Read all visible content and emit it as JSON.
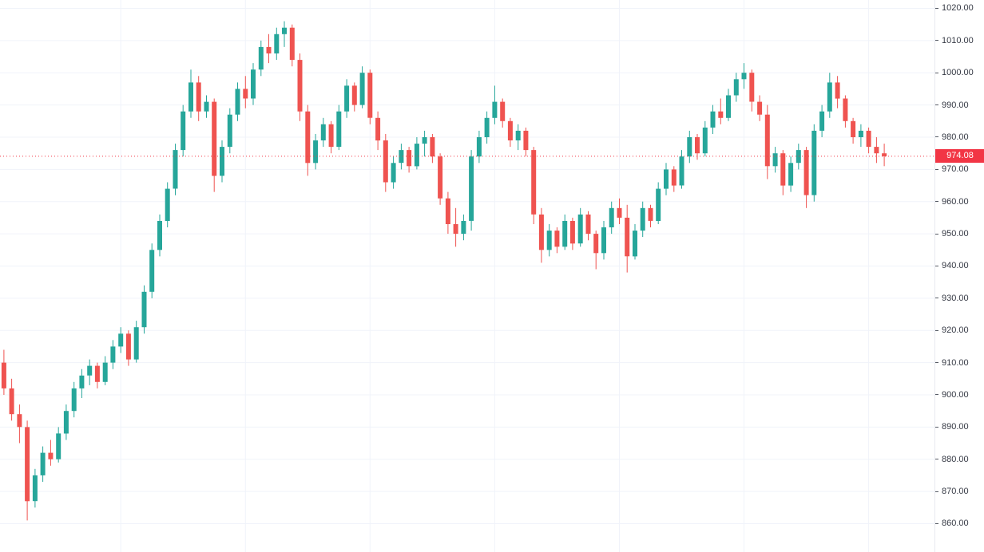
{
  "chart_data": {
    "type": "candlestick",
    "title": "",
    "xlabel": "",
    "ylabel": "",
    "ylim": [
      851.2,
      1022.6
    ],
    "grid": true,
    "legend": "none",
    "y_ticks": [
      "1020.00",
      "1010.00",
      "1000.00",
      "990.00",
      "980.00",
      "970.00",
      "960.00",
      "950.00",
      "940.00",
      "930.00",
      "920.00",
      "910.00",
      "900.00",
      "890.00",
      "880.00",
      "870.00",
      "860.00"
    ],
    "last_price": 974.08,
    "last_price_label": "974.08",
    "colors": {
      "up": "#26a69a",
      "down": "#ef5350",
      "grid": "#f0f3fa",
      "axis_text": "#363a45",
      "last_price_bg": "#f23645"
    },
    "candles": [
      [
        910,
        914,
        900,
        902
      ],
      [
        902,
        905,
        892,
        894
      ],
      [
        894,
        897,
        885,
        890
      ],
      [
        890,
        892,
        861,
        867
      ],
      [
        867,
        877,
        865,
        875
      ],
      [
        875,
        884,
        873,
        882
      ],
      [
        882,
        886,
        878,
        880
      ],
      [
        880,
        890,
        879,
        888
      ],
      [
        888,
        897,
        886,
        895
      ],
      [
        895,
        904,
        893,
        902
      ],
      [
        902,
        908,
        899,
        906
      ],
      [
        906,
        911,
        903,
        909
      ],
      [
        909,
        910,
        902,
        904
      ],
      [
        904,
        912,
        903,
        910
      ],
      [
        910,
        917,
        908,
        915
      ],
      [
        915,
        921,
        913,
        919
      ],
      [
        919,
        920,
        909,
        911
      ],
      [
        911,
        923,
        910,
        921
      ],
      [
        921,
        934,
        919,
        932
      ],
      [
        932,
        947,
        930,
        945
      ],
      [
        945,
        956,
        943,
        954
      ],
      [
        954,
        966,
        952,
        964
      ],
      [
        964,
        978,
        962,
        976
      ],
      [
        976,
        990,
        974,
        988
      ],
      [
        988,
        1001,
        986,
        997
      ],
      [
        997,
        999,
        985,
        988
      ],
      [
        988,
        993,
        986,
        991
      ],
      [
        991,
        992,
        963,
        968
      ],
      [
        968,
        979,
        966,
        977
      ],
      [
        977,
        989,
        975,
        987
      ],
      [
        987,
        997,
        985,
        995
      ],
      [
        995,
        999,
        989,
        992
      ],
      [
        992,
        1003,
        990,
        1001
      ],
      [
        1001,
        1010,
        999,
        1008
      ],
      [
        1008,
        1012,
        1003,
        1006
      ],
      [
        1006,
        1014,
        1004,
        1012
      ],
      [
        1012,
        1016,
        1008,
        1014
      ],
      [
        1014,
        1015,
        1002,
        1004
      ],
      [
        1004,
        1006,
        985,
        988
      ],
      [
        988,
        990,
        968,
        972
      ],
      [
        972,
        981,
        970,
        979
      ],
      [
        979,
        986,
        977,
        984
      ],
      [
        984,
        985,
        975,
        977
      ],
      [
        977,
        990,
        976,
        988
      ],
      [
        988,
        998,
        986,
        996
      ],
      [
        996,
        997,
        988,
        990
      ],
      [
        990,
        1002,
        989,
        1000
      ],
      [
        1000,
        1001,
        984,
        986
      ],
      [
        986,
        988,
        976,
        979
      ],
      [
        979,
        981,
        963,
        966
      ],
      [
        966,
        974,
        964,
        972
      ],
      [
        972,
        978,
        970,
        976
      ],
      [
        976,
        977,
        969,
        971
      ],
      [
        971,
        980,
        970,
        978
      ],
      [
        978,
        982,
        974,
        980
      ],
      [
        980,
        981,
        972,
        974
      ],
      [
        974,
        975,
        959,
        961
      ],
      [
        961,
        963,
        950,
        953
      ],
      [
        953,
        958,
        946,
        950
      ],
      [
        950,
        956,
        948,
        954
      ],
      [
        954,
        976,
        951,
        974
      ],
      [
        974,
        982,
        972,
        980
      ],
      [
        980,
        988,
        978,
        986
      ],
      [
        986,
        996,
        984,
        991
      ],
      [
        991,
        992,
        983,
        985
      ],
      [
        985,
        986,
        977,
        979
      ],
      [
        979,
        984,
        976,
        982
      ],
      [
        982,
        983,
        974,
        976
      ],
      [
        976,
        977,
        953,
        956
      ],
      [
        956,
        958,
        941,
        945
      ],
      [
        945,
        953,
        943,
        951
      ],
      [
        951,
        952,
        944,
        946
      ],
      [
        946,
        956,
        945,
        954
      ],
      [
        954,
        955,
        945,
        947
      ],
      [
        947,
        958,
        946,
        956
      ],
      [
        956,
        957,
        948,
        950
      ],
      [
        950,
        951,
        939,
        944
      ],
      [
        944,
        954,
        942,
        952
      ],
      [
        952,
        960,
        950,
        958
      ],
      [
        958,
        961,
        953,
        955
      ],
      [
        955,
        959,
        938,
        943
      ],
      [
        943,
        953,
        942,
        951
      ],
      [
        951,
        960,
        949,
        958
      ],
      [
        958,
        959,
        952,
        954
      ],
      [
        954,
        966,
        953,
        964
      ],
      [
        964,
        972,
        962,
        970
      ],
      [
        970,
        971,
        963,
        965
      ],
      [
        965,
        976,
        964,
        974
      ],
      [
        974,
        982,
        972,
        980
      ],
      [
        980,
        981,
        973,
        975
      ],
      [
        975,
        985,
        974,
        983
      ],
      [
        983,
        990,
        981,
        988
      ],
      [
        988,
        992,
        984,
        986
      ],
      [
        986,
        995,
        985,
        993
      ],
      [
        993,
        1000,
        991,
        998
      ],
      [
        998,
        1003,
        995,
        1000
      ],
      [
        1000,
        1001,
        988,
        991
      ],
      [
        991,
        993,
        985,
        987
      ],
      [
        987,
        990,
        967,
        971
      ],
      [
        971,
        977,
        969,
        975
      ],
      [
        975,
        976,
        962,
        965
      ],
      [
        965,
        974,
        963,
        972
      ],
      [
        972,
        978,
        970,
        976
      ],
      [
        976,
        977,
        958,
        962
      ],
      [
        962,
        984,
        960,
        982
      ],
      [
        982,
        990,
        980,
        988
      ],
      [
        988,
        1000,
        986,
        997
      ],
      [
        997,
        999,
        989,
        992
      ],
      [
        992,
        993,
        983,
        985
      ],
      [
        985,
        986,
        978,
        980
      ],
      [
        980,
        984,
        977,
        982
      ],
      [
        982,
        983,
        975,
        977
      ],
      [
        977,
        980,
        972,
        975
      ],
      [
        975,
        978,
        971,
        974.08
      ]
    ]
  }
}
